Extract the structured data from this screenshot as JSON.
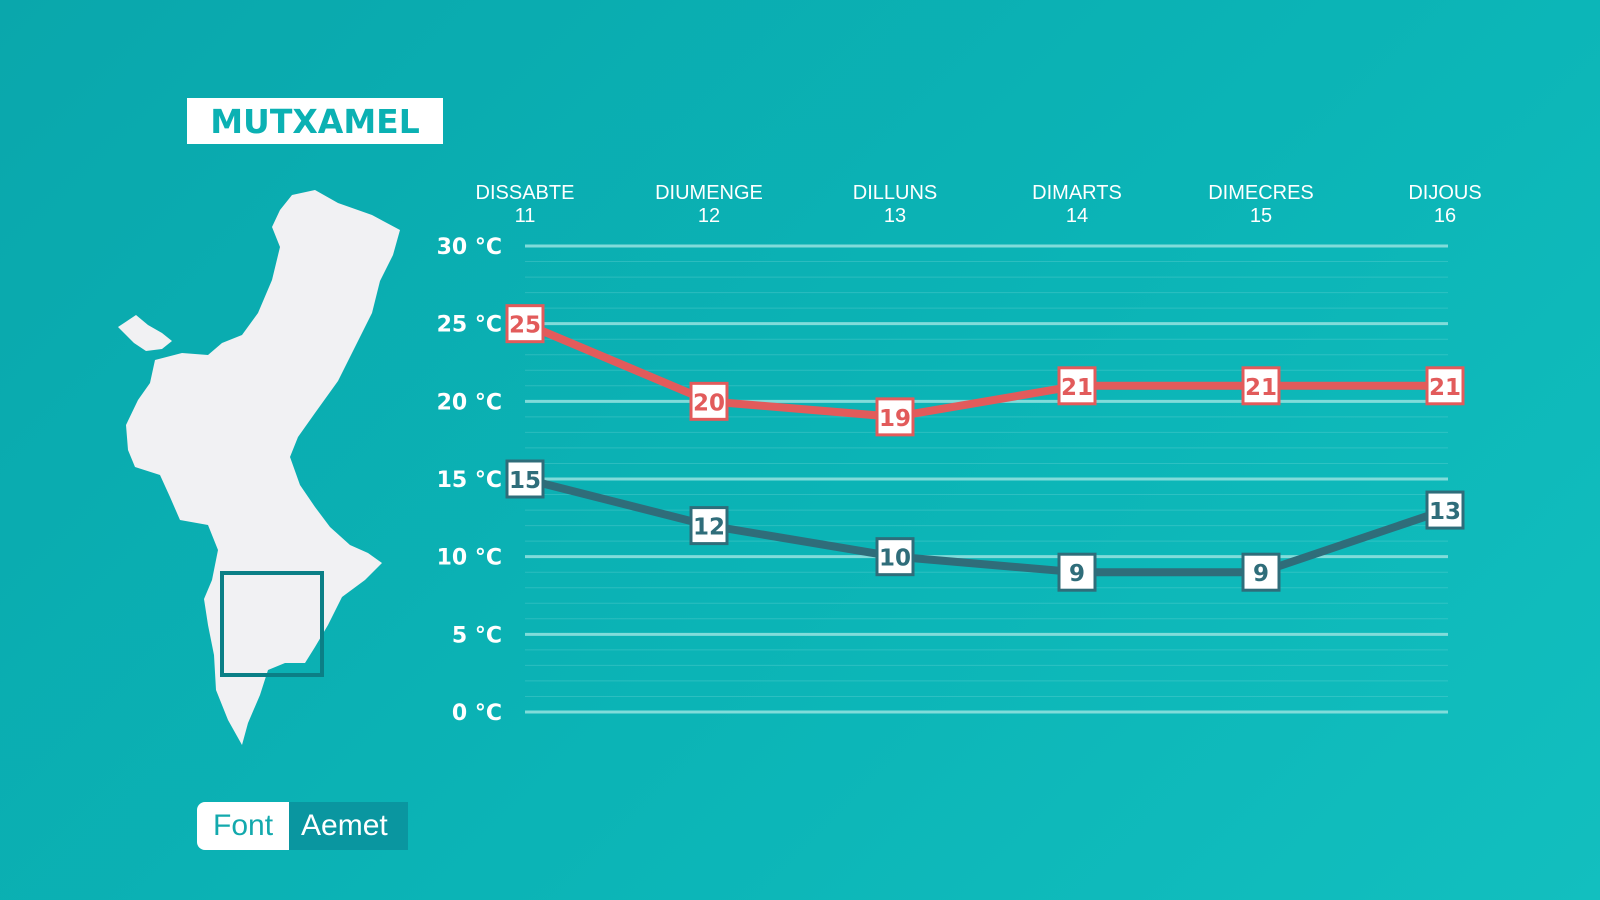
{
  "location": "MUTXAMEL",
  "source": {
    "label": "Font",
    "value": "Aemet"
  },
  "colors": {
    "background": "#0bb1b3",
    "max_series": "#e25b5b",
    "min_series": "#2f6d7a",
    "grid": "#8ee0de"
  },
  "chart_data": {
    "type": "line",
    "categories": [
      {
        "day": "DISSABTE",
        "date": "11"
      },
      {
        "day": "DIUMENGE",
        "date": "12"
      },
      {
        "day": "DILLUNS",
        "date": "13"
      },
      {
        "day": "DIMARTS",
        "date": "14"
      },
      {
        "day": "DIMECRES",
        "date": "15"
      },
      {
        "day": "DIJOUS",
        "date": "16"
      }
    ],
    "y_ticks": [
      "0 °C",
      "5 °C",
      "10 °C",
      "15 °C",
      "20 °C",
      "25 °C",
      "30 °C"
    ],
    "ylim": [
      0,
      30
    ],
    "grid": true,
    "series": [
      {
        "key": "max",
        "values": [
          25,
          20,
          19,
          21,
          21,
          21
        ]
      },
      {
        "key": "min",
        "values": [
          15,
          12,
          10,
          9,
          9,
          13
        ]
      }
    ]
  }
}
